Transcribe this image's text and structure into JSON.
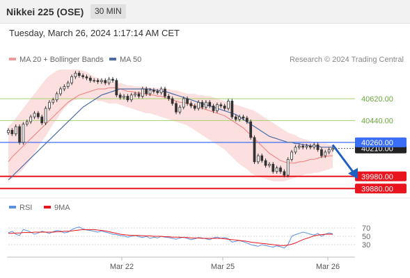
{
  "header": {
    "title": "Nikkei 225 (OSE)",
    "interval": "30 MIN"
  },
  "timestamp": "Tuesday, March 26, 2024 1:17:14 AM CET",
  "legend": {
    "ma20_bb": {
      "label": "MA 20 + Bollinger Bands",
      "color": "#f19a9a"
    },
    "ma50": {
      "label": "MA 50",
      "color": "#4a6da8"
    },
    "rsi": {
      "label": "RSI",
      "color": "#5b8fe0"
    },
    "ma9": {
      "label": "9MA",
      "color": "#e8141e"
    }
  },
  "copyright": "Research © 2024 Trading Central",
  "colors": {
    "support": "#e8141e",
    "resistance": "#a4d06c",
    "pivot": "#3b6ef6",
    "candle": "#333333",
    "arrow": "#1f5fbf",
    "band": "#fbd9d9"
  },
  "chart_data": [
    {
      "type": "candlestick",
      "title": "Nikkei 225 (OSE)",
      "ylim": [
        39830,
        40860
      ],
      "x_labels": [
        "Mar 22",
        "Mar 25",
        "Mar 26"
      ],
      "levels": [
        {
          "value": 40620.0,
          "label": "40620.00",
          "kind": "resistance"
        },
        {
          "value": 40440.0,
          "label": "40440.00",
          "kind": "resistance"
        },
        {
          "value": 40260.0,
          "label": "40260.00",
          "kind": "pivot"
        },
        {
          "value": 39980.0,
          "label": "39980.00",
          "kind": "support"
        },
        {
          "value": 39880.0,
          "label": "39880.00",
          "kind": "support"
        }
      ],
      "last_price": "40210.00",
      "forecast_arrow": {
        "from": 40240,
        "to": 39970
      },
      "close": [
        40360,
        40330,
        40390,
        40260,
        40410,
        40430,
        40470,
        40500,
        40470,
        40420,
        40540,
        40590,
        40610,
        40660,
        40700,
        40720,
        40750,
        40800,
        40830,
        40810,
        40800,
        40790,
        40770,
        40770,
        40760,
        40770,
        40750,
        40780,
        40770,
        40650,
        40630,
        40640,
        40610,
        40650,
        40660,
        40640,
        40700,
        40660,
        40690,
        40680,
        40670,
        40700,
        40640,
        40620,
        40580,
        40510,
        40550,
        40620,
        40580,
        40560,
        40540,
        40590,
        40550,
        40590,
        40560,
        40520,
        40570,
        40560,
        40540,
        40600,
        40470,
        40450,
        40470,
        40460,
        40430,
        40300,
        40100,
        40150,
        40110,
        40070,
        40080,
        40020,
        40050,
        40020,
        39990,
        40120,
        40180,
        40220,
        40230,
        40220,
        40230,
        40220,
        40240,
        40200,
        40150,
        40180,
        40200,
        40210
      ],
      "ma20": [
        40100,
        40140,
        40170,
        40200,
        40230,
        40260,
        40290,
        40320,
        40350,
        40380,
        40410,
        40440,
        40470,
        40500,
        40530,
        40560,
        40590,
        40610,
        40630,
        40650,
        40660,
        40670,
        40680,
        40690,
        40700,
        40700,
        40700,
        40710,
        40710,
        40710,
        40700,
        40690,
        40680,
        40680,
        40670,
        40670,
        40660,
        40660,
        40650,
        40650,
        40640,
        40640,
        40630,
        40620,
        40610,
        40600,
        40590,
        40590,
        40580,
        40570,
        40560,
        40550,
        40540,
        40530,
        40520,
        40510,
        40500,
        40490,
        40480,
        40460,
        40440,
        40420,
        40400,
        40380,
        40350,
        40320,
        40290,
        40260,
        40230,
        40200,
        40170,
        40150,
        40130,
        40110,
        40100,
        40090,
        40090,
        40090,
        40100,
        40100,
        40110,
        40120,
        40120,
        40130,
        40140,
        40140,
        40150,
        40150
      ],
      "bb_upper": [
        40390,
        40420,
        40460,
        40500,
        40540,
        40580,
        40620,
        40660,
        40700,
        40740,
        40780,
        40810,
        40830,
        40850,
        40860,
        40860,
        40860,
        40860,
        40860,
        40860,
        40850,
        40840,
        40820,
        40800,
        40790,
        40780,
        40770,
        40760,
        40760,
        40750,
        40750,
        40740,
        40730,
        40730,
        40720,
        40720,
        40720,
        40720,
        40710,
        40710,
        40710,
        40700,
        40700,
        40700,
        40690,
        40690,
        40680,
        40670,
        40660,
        40660,
        40660,
        40650,
        40650,
        40640,
        40640,
        40630,
        40620,
        40610,
        40600,
        40590,
        40580,
        40570,
        40560,
        40550,
        40540,
        40530,
        40520,
        40500,
        40480,
        40460,
        40440,
        40420,
        40400,
        40380,
        40360,
        40340,
        40330,
        40320,
        40300,
        40290,
        40280,
        40270,
        40260,
        40260,
        40250,
        40250,
        40240,
        40240
      ],
      "bb_lower": [
        39950,
        39960,
        39990,
        40010,
        40040,
        40080,
        40120,
        40170,
        40220,
        40270,
        40310,
        40360,
        40410,
        40450,
        40500,
        40540,
        40570,
        40600,
        40610,
        40620,
        40620,
        40620,
        40620,
        40610,
        40600,
        40600,
        40590,
        40580,
        40580,
        40580,
        40570,
        40560,
        40550,
        40540,
        40530,
        40520,
        40510,
        40500,
        40500,
        40490,
        40480,
        40470,
        40460,
        40450,
        40440,
        40430,
        40420,
        40410,
        40400,
        40380,
        40360,
        40340,
        40320,
        40300,
        40280,
        40260,
        40240,
        40220,
        40200,
        40170,
        40140,
        40110,
        40080,
        40060,
        40040,
        40010,
        39990,
        39980,
        39970,
        39960,
        39950,
        39940,
        39940,
        39940,
        39940,
        39950,
        39960,
        39970,
        39980,
        39990,
        40000,
        40000,
        40010,
        40010,
        40020,
        40030,
        40040,
        40050
      ],
      "ma50": [
        39950,
        39980,
        40010,
        40040,
        40070,
        40100,
        40130,
        40160,
        40190,
        40220,
        40250,
        40280,
        40310,
        40340,
        40370,
        40400,
        40430,
        40460,
        40490,
        40520,
        40550,
        40570,
        40590,
        40610,
        40630,
        40650,
        40660,
        40670,
        40680,
        40690,
        40700,
        40700,
        40700,
        40700,
        40700,
        40700,
        40700,
        40700,
        40700,
        40690,
        40690,
        40680,
        40680,
        40670,
        40660,
        40650,
        40640,
        40630,
        40620,
        40610,
        40600,
        40590,
        40580,
        40570,
        40560,
        40550,
        40540,
        40530,
        40520,
        40510,
        40500,
        40490,
        40470,
        40450,
        40430,
        40410,
        40390,
        40370,
        40350,
        40330,
        40310,
        40300,
        40290,
        40280,
        40270,
        40260,
        40260,
        40250,
        40250,
        40240,
        40240,
        40230,
        40230,
        40230,
        40220,
        40220,
        40220,
        40220
      ]
    },
    {
      "type": "line",
      "title": "RSI",
      "ylim": [
        0,
        100
      ],
      "y_ticks": [
        70,
        50,
        30
      ],
      "series": [
        {
          "name": "RSI",
          "values": [
            58,
            62,
            55,
            52,
            66,
            64,
            60,
            55,
            58,
            62,
            60,
            57,
            61,
            64,
            63,
            58,
            60,
            66,
            70,
            72,
            68,
            65,
            64,
            62,
            60,
            63,
            60,
            58,
            55,
            54,
            52,
            51,
            48,
            50,
            52,
            49,
            47,
            50,
            45,
            48,
            46,
            50,
            48,
            47,
            45,
            43,
            46,
            48,
            45,
            42,
            44,
            47,
            46,
            44,
            42,
            46,
            48,
            45,
            47,
            44,
            36,
            38,
            40,
            37,
            34,
            30,
            28,
            26,
            30,
            28,
            26,
            24,
            27,
            25,
            22,
            30,
            50,
            54,
            57,
            60,
            58,
            55,
            53,
            57,
            50,
            55,
            58,
            56
          ]
        },
        {
          "name": "9MA",
          "values": [
            57,
            57,
            58,
            58,
            59,
            59,
            59,
            60,
            60,
            60,
            60,
            60,
            60,
            61,
            61,
            62,
            62,
            63,
            64,
            65,
            66,
            66,
            66,
            66,
            65,
            64,
            63,
            61,
            59,
            57,
            55,
            54,
            53,
            52,
            52,
            52,
            51,
            51,
            51,
            50,
            50,
            50,
            49,
            49,
            48,
            48,
            48,
            47,
            47,
            46,
            46,
            46,
            45,
            45,
            45,
            45,
            45,
            45,
            44,
            43,
            42,
            41,
            40,
            39,
            38,
            36,
            35,
            34,
            33,
            32,
            31,
            30,
            29,
            28,
            28,
            29,
            31,
            34,
            38,
            42,
            45,
            48,
            51,
            53,
            54,
            55,
            55,
            55
          ]
        }
      ]
    }
  ]
}
